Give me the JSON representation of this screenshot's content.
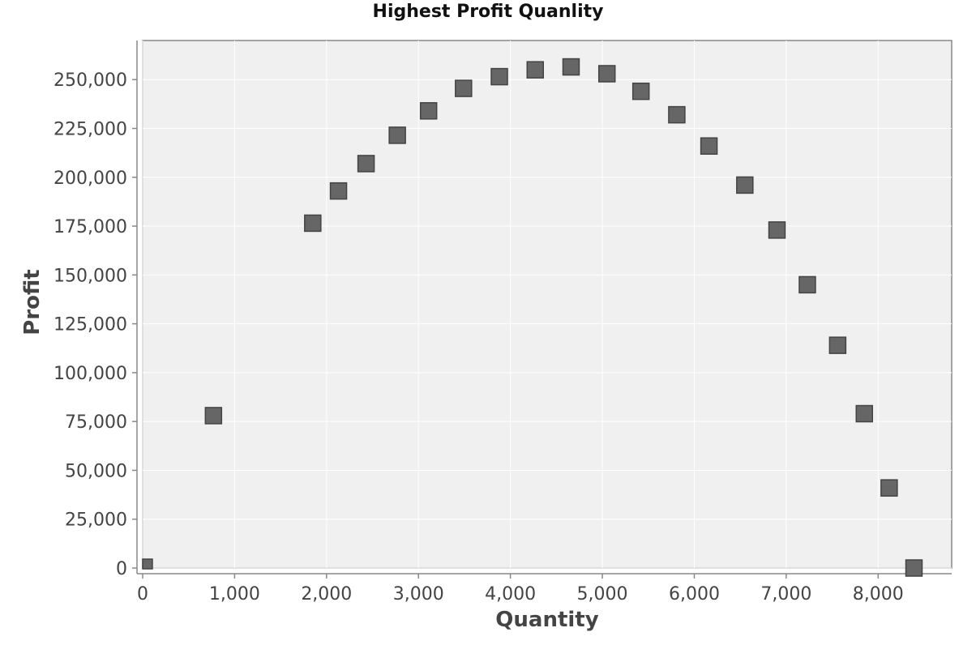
{
  "chart_data": {
    "type": "scatter",
    "title": "Highest Profit Quanlity",
    "xlabel": "Quantity",
    "ylabel": "Profit",
    "xlim": [
      0,
      8800
    ],
    "ylim": [
      0,
      270000
    ],
    "x_ticks": [
      0,
      1000,
      2000,
      3000,
      4000,
      5000,
      6000,
      7000,
      8000
    ],
    "x_tick_labels": [
      "0",
      "1,000",
      "2,000",
      "3,000",
      "4,000",
      "5,000",
      "6,000",
      "7,000",
      "8,000"
    ],
    "y_ticks": [
      0,
      25000,
      50000,
      75000,
      100000,
      125000,
      150000,
      175000,
      200000,
      225000,
      250000
    ],
    "y_tick_labels": [
      "0",
      "25,000",
      "50,000",
      "75,000",
      "100,000",
      "125,000",
      "150,000",
      "175,000",
      "200,000",
      "225,000",
      "250,000"
    ],
    "grid": true,
    "legend": "none",
    "marker_color": "#666666",
    "background_color": "#f0f0f0",
    "points": [
      {
        "x": 30,
        "y": 0
      },
      {
        "x": 770,
        "y": 78000
      },
      {
        "x": 1850,
        "y": 176500
      },
      {
        "x": 2130,
        "y": 193000
      },
      {
        "x": 2430,
        "y": 207000
      },
      {
        "x": 2770,
        "y": 221500
      },
      {
        "x": 3110,
        "y": 234000
      },
      {
        "x": 3490,
        "y": 245500
      },
      {
        "x": 3880,
        "y": 251500
      },
      {
        "x": 4270,
        "y": 255000
      },
      {
        "x": 4660,
        "y": 256500
      },
      {
        "x": 5050,
        "y": 253000
      },
      {
        "x": 5420,
        "y": 244000
      },
      {
        "x": 5810,
        "y": 232000
      },
      {
        "x": 6160,
        "y": 216000
      },
      {
        "x": 6550,
        "y": 196000
      },
      {
        "x": 6900,
        "y": 173000
      },
      {
        "x": 7230,
        "y": 145000
      },
      {
        "x": 7560,
        "y": 114000
      },
      {
        "x": 7850,
        "y": 79000
      },
      {
        "x": 8120,
        "y": 41000
      },
      {
        "x": 8390,
        "y": 0
      }
    ]
  }
}
